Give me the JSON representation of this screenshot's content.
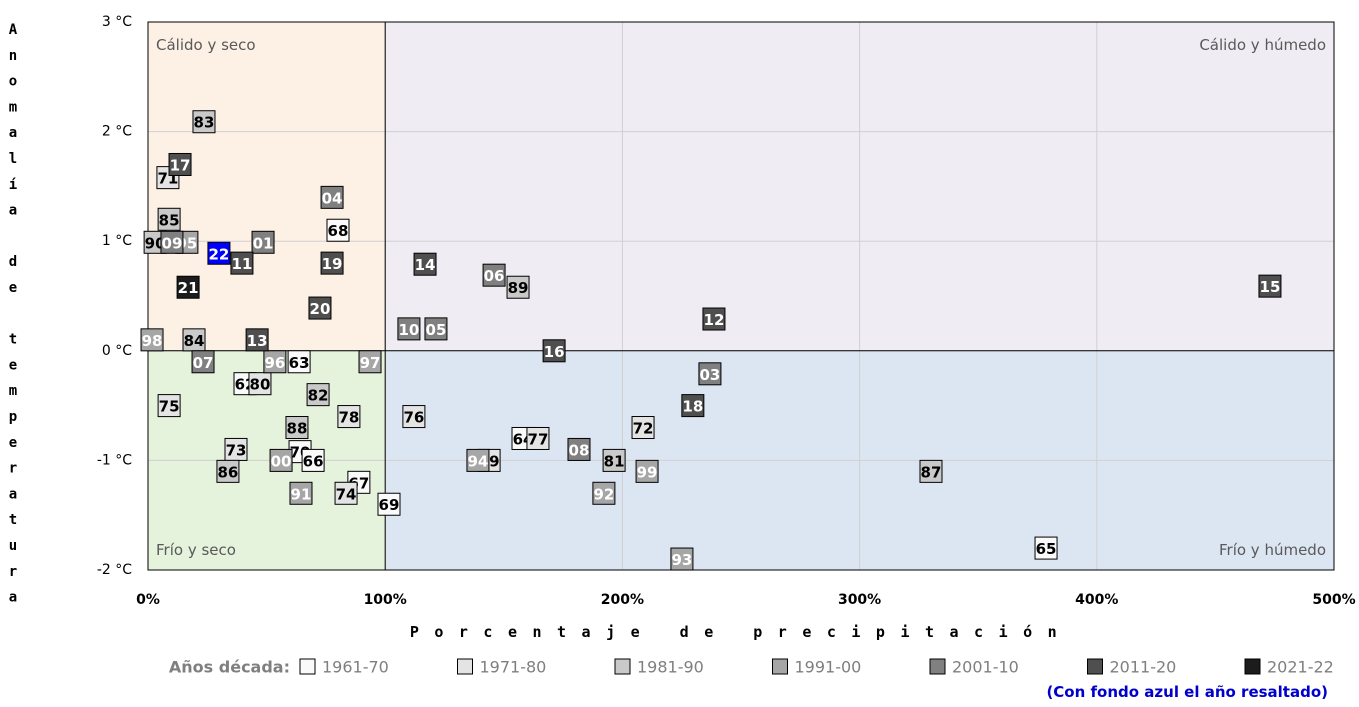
{
  "chart_data": {
    "type": "scatter",
    "xlabel": "Porcentaje de precipitación",
    "ylabel": "Anomalía de temperatura",
    "xlim": [
      0,
      500
    ],
    "ylim": [
      -2,
      3
    ],
    "xticks": [
      {
        "value": 0,
        "label": "0%"
      },
      {
        "value": 100,
        "label": "100%"
      },
      {
        "value": 200,
        "label": "200%"
      },
      {
        "value": 300,
        "label": "300%"
      },
      {
        "value": 400,
        "label": "400%"
      },
      {
        "value": 500,
        "label": "500%"
      }
    ],
    "yticks": [
      {
        "value": -2,
        "label": "-2 °C"
      },
      {
        "value": -1,
        "label": "-1 °C"
      },
      {
        "value": 0,
        "label": "0 °C"
      },
      {
        "value": 1,
        "label": "1 °C"
      },
      {
        "value": 2,
        "label": "2 °C"
      },
      {
        "value": 3,
        "label": "3 °C"
      }
    ],
    "grid": true,
    "quadrant_x": 100,
    "quadrant_y": 0,
    "quadrants": [
      {
        "label": "Cálido y seco",
        "color": "#fdf1e6",
        "corner": "top-left"
      },
      {
        "label": "Cálido y húmedo",
        "color": "#efecf4",
        "corner": "top-right"
      },
      {
        "label": "Frío y seco",
        "color": "#e5f2dc",
        "corner": "bottom-left"
      },
      {
        "label": "Frío y húmedo",
        "color": "#dce6f2",
        "corner": "bottom-right"
      }
    ],
    "legend_title": "Años década:",
    "note": "(Con fondo azul el año resaltado)",
    "highlight_color": "#0000ff",
    "series": [
      {
        "name": "1961-70",
        "color": "#fafafa",
        "text_color": "#000000",
        "labels": [
          "68",
          "63",
          "62",
          "70",
          "66",
          "67",
          "69",
          "64",
          "65"
        ],
        "x": [
          80.1,
          63.7,
          40.9,
          64.1,
          69.6,
          88.9,
          101.6,
          158.1,
          378.6
        ],
        "values": [
          1.1,
          -0.1,
          -0.3,
          -0.92,
          -1.0,
          -1.2,
          -1.4,
          -0.8,
          -1.8
        ]
      },
      {
        "name": "1971-80",
        "color": "#e4e4e4",
        "text_color": "#000000",
        "labels": [
          "71",
          "80",
          "75",
          "78",
          "76",
          "73",
          "74",
          "72",
          "77",
          "79"
        ],
        "x": [
          8.4,
          47.2,
          8.9,
          84.7,
          112.1,
          37.1,
          83.5,
          208.7,
          164.4,
          143.8
        ],
        "values": [
          1.58,
          -0.3,
          -0.5,
          -0.6,
          -0.6,
          -0.9,
          -1.3,
          -0.7,
          -0.8,
          -1.0
        ]
      },
      {
        "name": "1981-90",
        "color": "#c9c9c9",
        "text_color": "#000000",
        "labels": [
          "83",
          "85",
          "90",
          "84",
          "82",
          "88",
          "86",
          "89",
          "81",
          "87"
        ],
        "x": [
          23.6,
          8.9,
          3.0,
          19.4,
          71.7,
          62.8,
          33.7,
          156.0,
          196.5,
          330.1
        ],
        "values": [
          2.09,
          1.2,
          0.99,
          0.1,
          -0.4,
          -0.7,
          -1.1,
          0.58,
          -1.0,
          -1.1
        ]
      },
      {
        "name": "1991-00",
        "color": "#a6a6a6",
        "text_color": "#ffffff",
        "labels": [
          "95",
          "98",
          "96",
          "97",
          "00",
          "91",
          "94",
          "99",
          "92",
          "93"
        ],
        "x": [
          16.4,
          1.7,
          53.5,
          93.6,
          56.1,
          64.5,
          139.1,
          210.4,
          192.2,
          225.1
        ],
        "values": [
          0.99,
          0.1,
          -0.1,
          -0.1,
          -1.0,
          -1.3,
          -1.0,
          -1.1,
          -1.3,
          -1.9
        ]
      },
      {
        "name": "2001-10",
        "color": "#808080",
        "text_color": "#ffffff",
        "labels": [
          "09",
          "01",
          "04",
          "07",
          "06",
          "10",
          "05",
          "03",
          "08"
        ],
        "x": [
          10.1,
          48.5,
          77.6,
          23.2,
          145.9,
          110.0,
          121.4,
          236.9,
          181.7
        ],
        "values": [
          0.99,
          0.99,
          1.4,
          -0.1,
          0.69,
          0.2,
          0.2,
          -0.21,
          -0.9
        ]
      },
      {
        "name": "2011-20",
        "color": "#4f4f4f",
        "text_color": "#ffffff",
        "labels": [
          "17",
          "11",
          "19",
          "20",
          "13",
          "14",
          "16",
          "12",
          "18",
          "15"
        ],
        "x": [
          13.5,
          39.6,
          77.6,
          72.5,
          46.0,
          116.8,
          171.2,
          238.6,
          229.7,
          473.0
        ],
        "values": [
          1.7,
          0.8,
          0.8,
          0.39,
          0.1,
          0.79,
          0.0,
          0.29,
          -0.5,
          0.59
        ]
      },
      {
        "name": "2021-22",
        "color": "#1c1c1c",
        "text_color": "#ffffff",
        "highlight_index": 0,
        "labels": [
          "22",
          "21"
        ],
        "x": [
          29.9,
          16.9
        ],
        "values": [
          0.89,
          0.58
        ]
      }
    ]
  }
}
